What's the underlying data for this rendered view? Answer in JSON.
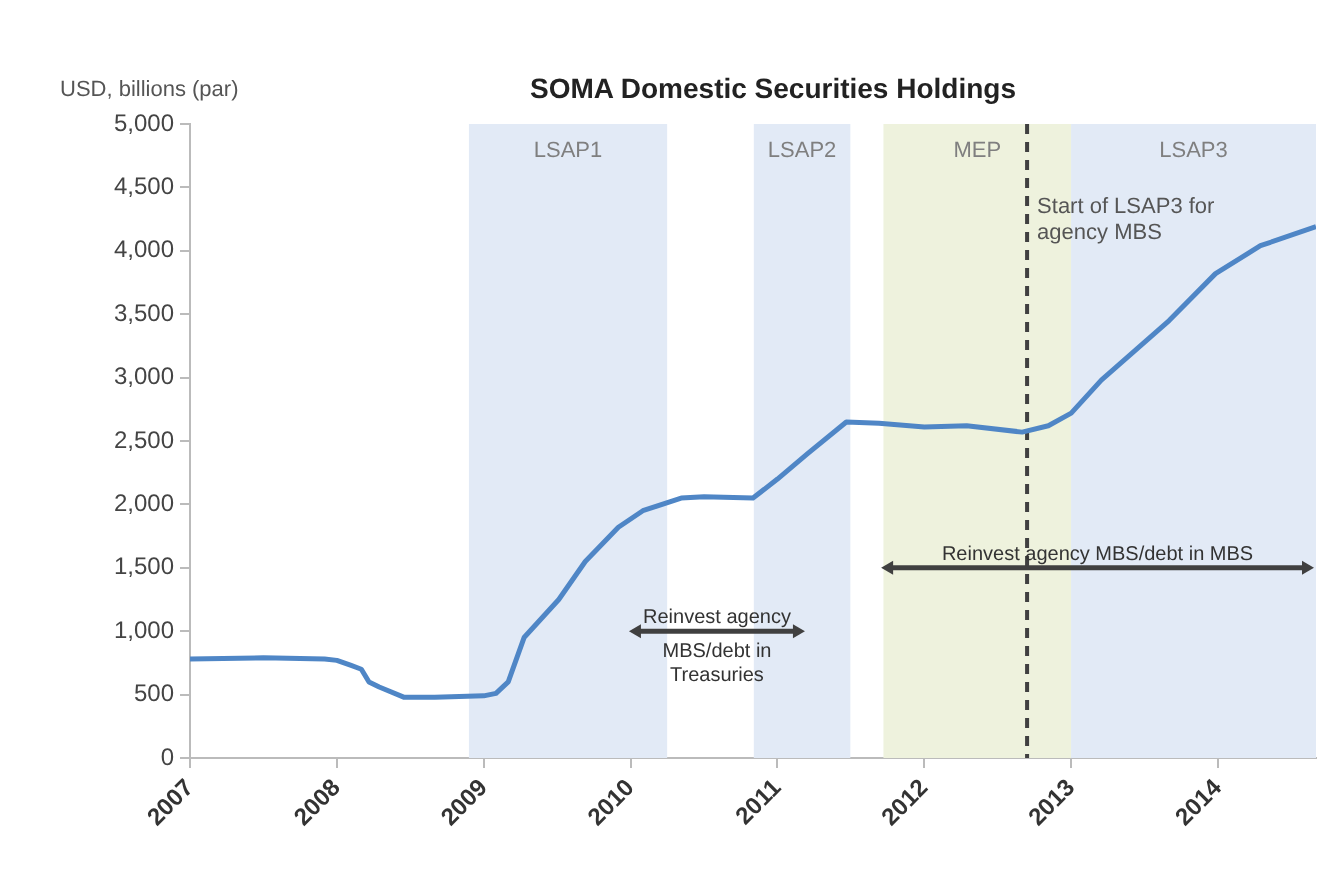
{
  "chart_data": {
    "type": "line",
    "title": "SOMA Domestic Securities Holdings",
    "ylabel": "USD, billions (par)",
    "x": [
      "2007-01-01",
      "2007-07-01",
      "2007-12-01",
      "2008-01-01",
      "2008-02-06",
      "2008-03-01",
      "2008-03-20",
      "2008-04-15",
      "2008-06-15",
      "2008-09-01",
      "2009-01-01",
      "2009-02-01",
      "2009-03-01",
      "2009-04-10",
      "2009-07-05",
      "2009-09-10",
      "2009-12-01",
      "2010-02-01",
      "2010-05-05",
      "2010-07-01",
      "2010-11-01",
      "2011-01-01",
      "2011-03-15",
      "2011-06-20",
      "2011-09-10",
      "2012-01-01",
      "2012-04-15",
      "2012-09-01",
      "2012-11-05",
      "2013-01-01",
      "2013-03-15",
      "2013-09-01",
      "2013-12-25",
      "2014-04-15",
      "2014-09-01"
    ],
    "series": [
      {
        "color": "#4f86c6",
        "values": [
          780,
          790,
          780,
          770,
          730,
          700,
          600,
          560,
          480,
          480,
          490,
          510,
          600,
          950,
          1250,
          1550,
          1820,
          1950,
          2050,
          2060,
          2050,
          2200,
          2400,
          2650,
          2640,
          2610,
          2620,
          2570,
          2620,
          2720,
          2980,
          3450,
          3820,
          4040,
          4190
        ]
      }
    ],
    "xlim": [
      "2007-01-01",
      "2014-09-01"
    ],
    "xticks": [
      "2007",
      "2008",
      "2009",
      "2010",
      "2011",
      "2012",
      "2013",
      "2014"
    ],
    "ylim": [
      0,
      5000
    ],
    "yticks": [
      {
        "value": 0,
        "label": "0"
      },
      {
        "value": 500,
        "label": "500"
      },
      {
        "value": 1000,
        "label": "1,000"
      },
      {
        "value": 1500,
        "label": "1,500"
      },
      {
        "value": 2000,
        "label": "2,000"
      },
      {
        "value": 2500,
        "label": "2,500"
      },
      {
        "value": 3000,
        "label": "3,000"
      },
      {
        "value": 3500,
        "label": "3,500"
      },
      {
        "value": 4000,
        "label": "4,000"
      },
      {
        "value": 4500,
        "label": "4,500"
      },
      {
        "value": 5000,
        "label": "5,000"
      }
    ],
    "bands": [
      {
        "axis": "x",
        "from": "2008-11-25",
        "to": "2010-03-31",
        "label": "LSAP1",
        "color": "#e2eaf6"
      },
      {
        "axis": "x",
        "from": "2010-11-03",
        "to": "2011-06-30",
        "label": "LSAP2",
        "color": "#e2eaf6"
      },
      {
        "axis": "x",
        "from": "2011-09-21",
        "to": "2012-12-31",
        "label": "MEP",
        "color": "#eef2dd"
      },
      {
        "axis": "x",
        "from": "2012-12-31",
        "to": "2014-09-01",
        "label": "LSAP3",
        "color": "#e2eaf6"
      }
    ],
    "ref_lines": [
      {
        "axis": "x",
        "value": "2012-09-13",
        "label": "Start of LSAP3 for agency MBS",
        "color": "#404040",
        "line_style": "dashed"
      }
    ],
    "annotations": [
      "Reinvest agency MBS/debt in Treasuries",
      "Reinvest agency MBS/debt in MBS"
    ],
    "grid": false,
    "legend": false,
    "marker": "none",
    "line_style": "solid"
  }
}
